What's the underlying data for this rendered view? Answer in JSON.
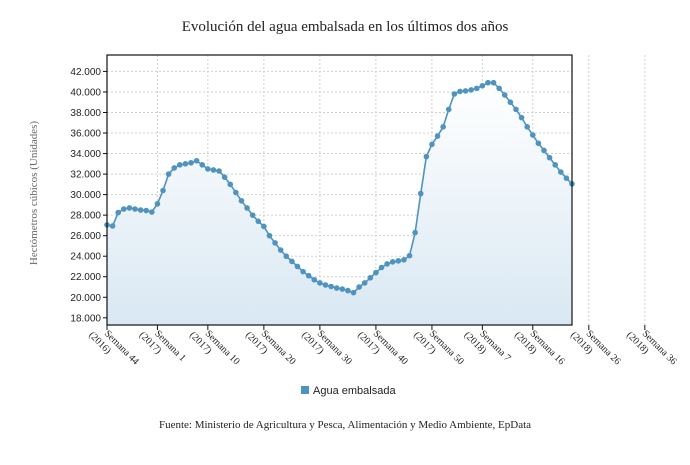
{
  "chart_data": {
    "type": "area",
    "title": "Evolución del agua embalsada en los últimos dos años",
    "ylabel": "Hectómetros cúbicos (Unidades)",
    "xlabel": "",
    "ylim": [
      17300,
      43600
    ],
    "yticks": [
      18000,
      20000,
      22000,
      24000,
      26000,
      28000,
      30000,
      32000,
      34000,
      36000,
      38000,
      40000,
      42000
    ],
    "ytick_labels": [
      "18.000",
      "20.000",
      "22.000",
      "24.000",
      "26.000",
      "28.000",
      "30.000",
      "32.000",
      "34.000",
      "36.000",
      "38.000",
      "40.000",
      "42.000"
    ],
    "x_tick_labels": [
      {
        "index": 0,
        "line1": "Semana 44",
        "line2": "(2016)"
      },
      {
        "index": 9,
        "line1": "Semana 1",
        "line2": "(2017)"
      },
      {
        "index": 18,
        "line1": "Semana 10",
        "line2": "(2017)"
      },
      {
        "index": 28,
        "line1": "Semana 20",
        "line2": "(2017)"
      },
      {
        "index": 38,
        "line1": "Semana 30",
        "line2": "(2017)"
      },
      {
        "index": 48,
        "line1": "Semana 40",
        "line2": "(2017)"
      },
      {
        "index": 58,
        "line1": "Semana 50",
        "line2": "(2017)"
      },
      {
        "index": 67,
        "line1": "Semana 7",
        "line2": "(2018)"
      },
      {
        "index": 76,
        "line1": "Semana 16",
        "line2": "(2018)"
      },
      {
        "index": 86,
        "line1": "Semana 26",
        "line2": "(2018)"
      },
      {
        "index": 96,
        "line1": "Semana 36",
        "line2": "(2018)"
      }
    ],
    "grid": true,
    "legend_position": "bottom",
    "series": [
      {
        "name": "Agua embalsada",
        "color": "#4f93c0",
        "values": [
          27050,
          26950,
          28250,
          28600,
          28700,
          28600,
          28500,
          28450,
          28300,
          29100,
          30400,
          32000,
          32600,
          32900,
          33000,
          33100,
          33300,
          32900,
          32500,
          32400,
          32300,
          31700,
          31000,
          30200,
          29400,
          28700,
          28000,
          27400,
          26900,
          26000,
          25300,
          24600,
          24000,
          23500,
          23000,
          22500,
          22100,
          21700,
          21400,
          21200,
          21050,
          20900,
          20800,
          20650,
          20450,
          21000,
          21400,
          21900,
          22400,
          22900,
          23250,
          23450,
          23550,
          23650,
          24050,
          26300,
          30100,
          33700,
          34900,
          35700,
          36600,
          38300,
          39800,
          40050,
          40100,
          40200,
          40350,
          40600,
          40900,
          40900,
          40350,
          39700,
          39000,
          38300,
          37500,
          36600,
          35800,
          35000,
          34300,
          33600,
          32900,
          32200,
          31600,
          31050
        ]
      }
    ]
  },
  "legend": {
    "label": "Agua embalsada"
  },
  "source": "Fuente: Ministerio de Agricultura y Pesca, Alimentación y Medio Ambiente, EpData"
}
